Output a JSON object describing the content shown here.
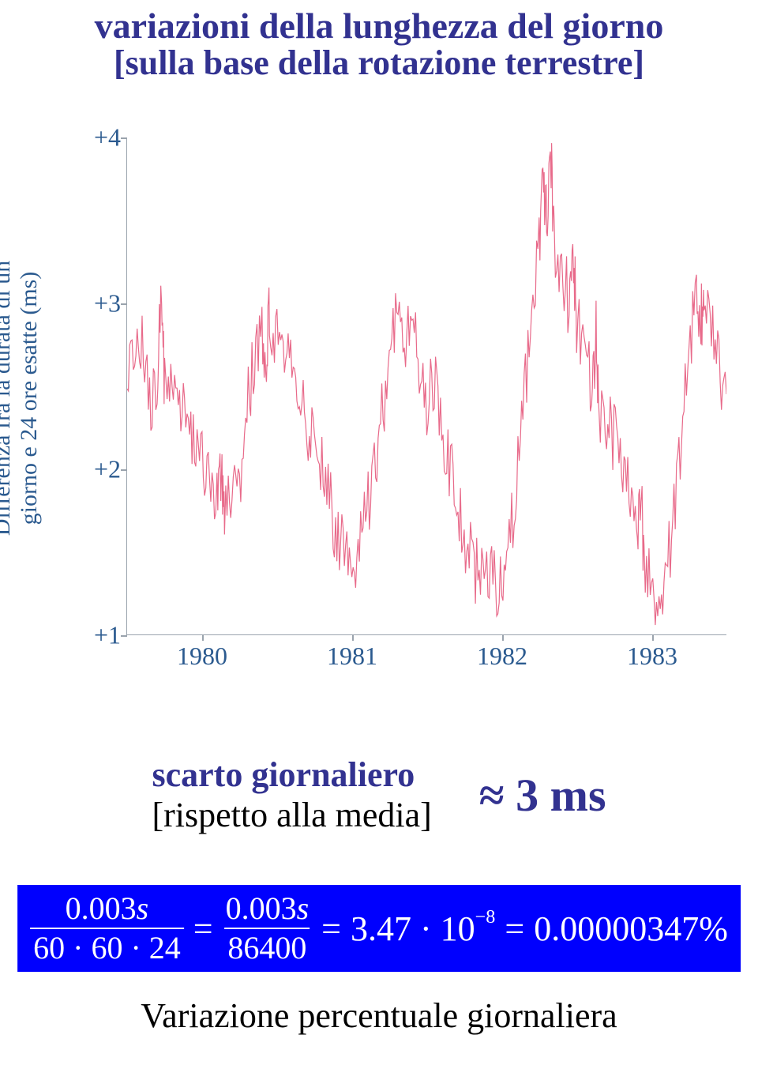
{
  "title": "variazioni della lunghezza del giorno",
  "subtitle": "[sulla base della rotazione terrestre]",
  "chart": {
    "type": "line",
    "ylabel_line1": "Differenza fra la durata di un",
    "ylabel_line2": "giorno e 24 ore esatte (ms)",
    "ylim": [
      1,
      4
    ],
    "yticks": [
      1,
      2,
      3,
      4
    ],
    "ytick_labels": [
      "+1",
      "+2",
      "+3",
      "+4"
    ],
    "xlim": [
      1979.5,
      1983.5
    ],
    "xticks": [
      1980,
      1981,
      1982,
      1983
    ],
    "xtick_labels": [
      "1980",
      "1981",
      "1982",
      "1983"
    ],
    "line_color": "#e86a8a",
    "axis_color": "#9aa3ad",
    "label_color": "#2b5a8f",
    "background_color": "#ffffff",
    "data_points": [
      [
        1979.5,
        2.7
      ],
      [
        1979.55,
        2.55
      ],
      [
        1979.6,
        2.85
      ],
      [
        1979.65,
        2.4
      ],
      [
        1979.7,
        2.6
      ],
      [
        1979.73,
        3.1
      ],
      [
        1979.75,
        2.5
      ],
      [
        1979.8,
        2.65
      ],
      [
        1979.85,
        2.35
      ],
      [
        1979.9,
        2.4
      ],
      [
        1979.95,
        2.15
      ],
      [
        1980.0,
        2.1
      ],
      [
        1980.05,
        1.95
      ],
      [
        1980.1,
        1.85
      ],
      [
        1980.13,
        2.05
      ],
      [
        1980.15,
        1.7
      ],
      [
        1980.2,
        1.8
      ],
      [
        1980.25,
        1.95
      ],
      [
        1980.3,
        2.35
      ],
      [
        1980.35,
        2.7
      ],
      [
        1980.4,
        2.85
      ],
      [
        1980.43,
        2.6
      ],
      [
        1980.45,
        2.95
      ],
      [
        1980.5,
        2.8
      ],
      [
        1980.55,
        2.55
      ],
      [
        1980.6,
        2.65
      ],
      [
        1980.65,
        2.4
      ],
      [
        1980.7,
        2.3
      ],
      [
        1980.75,
        2.1
      ],
      [
        1980.8,
        2.0
      ],
      [
        1980.85,
        1.85
      ],
      [
        1980.9,
        1.6
      ],
      [
        1980.95,
        1.55
      ],
      [
        1981.0,
        1.45
      ],
      [
        1981.05,
        1.55
      ],
      [
        1981.1,
        1.75
      ],
      [
        1981.15,
        2.05
      ],
      [
        1981.2,
        2.3
      ],
      [
        1981.25,
        2.65
      ],
      [
        1981.3,
        2.9
      ],
      [
        1981.35,
        2.7
      ],
      [
        1981.4,
        2.85
      ],
      [
        1981.45,
        2.6
      ],
      [
        1981.5,
        2.4
      ],
      [
        1981.55,
        2.55
      ],
      [
        1981.6,
        2.25
      ],
      [
        1981.65,
        2.0
      ],
      [
        1981.7,
        1.8
      ],
      [
        1981.75,
        1.6
      ],
      [
        1981.8,
        1.45
      ],
      [
        1981.85,
        1.35
      ],
      [
        1981.9,
        1.4
      ],
      [
        1981.95,
        1.3
      ],
      [
        1982.0,
        1.35
      ],
      [
        1982.05,
        1.55
      ],
      [
        1982.1,
        1.9
      ],
      [
        1982.15,
        2.4
      ],
      [
        1982.2,
        2.9
      ],
      [
        1982.25,
        3.3
      ],
      [
        1982.28,
        3.75
      ],
      [
        1982.3,
        3.45
      ],
      [
        1982.33,
        3.85
      ],
      [
        1982.35,
        3.4
      ],
      [
        1982.4,
        3.2
      ],
      [
        1982.45,
        3.0
      ],
      [
        1982.48,
        3.3
      ],
      [
        1982.5,
        2.9
      ],
      [
        1982.55,
        2.7
      ],
      [
        1982.6,
        2.5
      ],
      [
        1982.63,
        2.8
      ],
      [
        1982.65,
        2.4
      ],
      [
        1982.7,
        2.25
      ],
      [
        1982.75,
        2.2
      ],
      [
        1982.8,
        2.05
      ],
      [
        1982.85,
        1.85
      ],
      [
        1982.9,
        1.65
      ],
      [
        1982.93,
        1.9
      ],
      [
        1982.95,
        1.45
      ],
      [
        1983.0,
        1.3
      ],
      [
        1983.05,
        1.2
      ],
      [
        1983.1,
        1.35
      ],
      [
        1983.15,
        1.7
      ],
      [
        1983.2,
        2.2
      ],
      [
        1983.25,
        2.7
      ],
      [
        1983.3,
        3.1
      ],
      [
        1983.33,
        2.85
      ],
      [
        1983.35,
        3.15
      ],
      [
        1983.4,
        2.9
      ],
      [
        1983.45,
        2.6
      ],
      [
        1983.5,
        2.45
      ]
    ],
    "noise_amplitude": 0.22
  },
  "scarto": {
    "label": "scarto giornaliero",
    "note": "[rispetto alla media]",
    "approx": "≈ 3 ms"
  },
  "formula": {
    "frac1_num": "0.003",
    "frac1_num_unit": "s",
    "frac1_den": "60 · 60 · 24",
    "eq1": "=",
    "frac2_num": "0.003",
    "frac2_num_unit": "s",
    "frac2_den": "86400",
    "eq2": "=",
    "scientific": "3.47 · 10",
    "exponent": "−8",
    "eq3": "=",
    "percent": "0.00000347%",
    "background": "#0000fe",
    "text_color": "#ffffff"
  },
  "caption": "Variazione percentuale giornaliera"
}
